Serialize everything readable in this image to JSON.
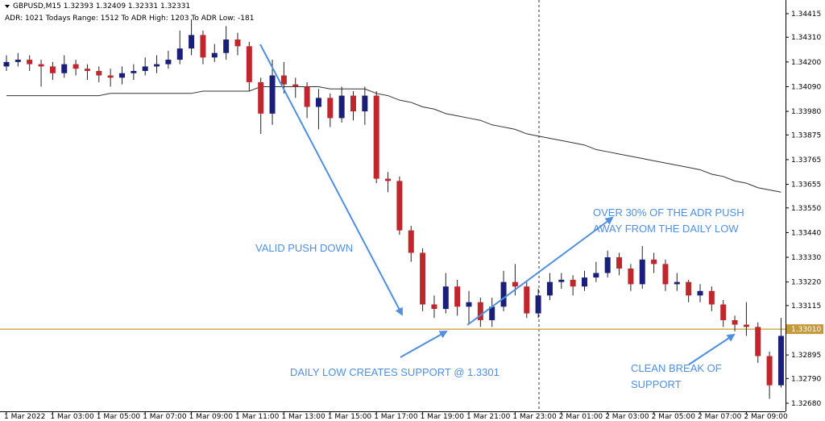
{
  "chart_data": {
    "type": "candlestick",
    "title": "GBPUSD,M15  1.32393 1.32409 1.32331 1.32331",
    "subtitle": "ADR: 1021  Todays Range: 1512  To ADR High: 1203  To ADR Low: -181",
    "categories": [
      "1 Mar 2022",
      null,
      null,
      null,
      "1 Mar 03:00",
      null,
      null,
      null,
      "1 Mar 05:00",
      null,
      null,
      null,
      "1 Mar 07:00",
      null,
      null,
      null,
      "1 Mar 09:00",
      null,
      null,
      null,
      "1 Mar 11:00",
      null,
      null,
      null,
      "1 Mar 13:00",
      null,
      null,
      null,
      "1 Mar 15:00",
      null,
      null,
      null,
      "1 Mar 17:00",
      null,
      null,
      null,
      "1 Mar 19:00",
      null,
      null,
      null,
      "1 Mar 21:00",
      null,
      null,
      null,
      "1 Mar 23:00",
      null,
      null,
      null,
      "2 Mar 01:00",
      null,
      null,
      null,
      "2 Mar 03:00",
      null,
      null,
      null,
      "2 Mar 05:00",
      null,
      null,
      null,
      "2 Mar 07:00",
      null,
      null,
      null,
      "2 Mar 09:00",
      null,
      null,
      null
    ],
    "open": [
      1.3418,
      1.342,
      1.3421,
      1.3419,
      1.3418,
      1.3415,
      1.3419,
      1.3417,
      1.3416,
      1.3414,
      1.3413,
      1.3415,
      1.3416,
      1.3418,
      1.3419,
      1.3421,
      1.3426,
      1.3432,
      1.3422,
      1.3424,
      1.343,
      1.3427,
      1.3411,
      1.3397,
      1.3414,
      1.341,
      1.3409,
      1.34,
      1.3404,
      1.3395,
      1.3405,
      1.3398,
      1.3405,
      1.3368,
      1.3367,
      1.3345,
      1.3335,
      1.3312,
      1.331,
      1.332,
      1.3311,
      1.3313,
      1.3305,
      1.3311,
      1.3322,
      1.332,
      1.3308,
      1.3316,
      1.3322,
      1.3323,
      1.332,
      1.3324,
      1.3326,
      1.3333,
      1.3328,
      1.3321,
      1.3332,
      1.333,
      1.3321,
      1.3322,
      1.3316,
      1.3318,
      1.3312,
      1.3305,
      1.3303,
      1.3302,
      1.3289,
      1.3276
    ],
    "high": [
      1.3423,
      1.3424,
      1.3423,
      1.3421,
      1.342,
      1.3423,
      1.3421,
      1.3419,
      1.3418,
      1.3417,
      1.3418,
      1.3419,
      1.3422,
      1.3423,
      1.3425,
      1.3434,
      1.3439,
      1.3434,
      1.3428,
      1.3436,
      1.3433,
      1.3429,
      1.3413,
      1.3421,
      1.342,
      1.3413,
      1.3411,
      1.3408,
      1.3406,
      1.3409,
      1.3407,
      1.3409,
      1.3407,
      1.3371,
      1.3369,
      1.3347,
      1.3337,
      1.3316,
      1.3326,
      1.3323,
      1.3318,
      1.3315,
      1.3315,
      1.3327,
      1.333,
      1.3322,
      1.3319,
      1.3326,
      1.3326,
      1.3325,
      1.3327,
      1.3331,
      1.3336,
      1.3335,
      1.333,
      1.3338,
      1.3335,
      1.3332,
      1.3326,
      1.3323,
      1.3321,
      1.332,
      1.3314,
      1.3307,
      1.3313,
      1.3304,
      1.3291,
      1.3306
    ],
    "low": [
      1.3416,
      1.3418,
      1.3416,
      1.3409,
      1.3412,
      1.3413,
      1.3414,
      1.3412,
      1.3411,
      1.3409,
      1.341,
      1.3412,
      1.3414,
      1.3415,
      1.3417,
      1.3419,
      1.3423,
      1.3419,
      1.342,
      1.3421,
      1.3423,
      1.3407,
      1.3388,
      1.3392,
      1.3406,
      1.3404,
      1.3395,
      1.339,
      1.3391,
      1.3393,
      1.3394,
      1.3392,
      1.3366,
      1.3362,
      1.3343,
      1.3331,
      1.3309,
      1.3306,
      1.3308,
      1.3307,
      1.3303,
      1.3302,
      1.3302,
      1.3309,
      1.3316,
      1.3306,
      1.3306,
      1.3314,
      1.3319,
      1.3316,
      1.3318,
      1.3322,
      1.3324,
      1.3325,
      1.3318,
      1.3319,
      1.3326,
      1.3318,
      1.3318,
      1.3313,
      1.3313,
      1.3309,
      1.3302,
      1.33,
      1.3298,
      1.3286,
      1.327,
      1.3275
    ],
    "close": [
      1.342,
      1.3421,
      1.3419,
      1.3418,
      1.3415,
      1.3419,
      1.3417,
      1.3416,
      1.3414,
      1.3413,
      1.3415,
      1.3416,
      1.3418,
      1.3419,
      1.3421,
      1.3426,
      1.3432,
      1.3422,
      1.3424,
      1.343,
      1.3427,
      1.3411,
      1.3397,
      1.3414,
      1.341,
      1.3409,
      1.34,
      1.3404,
      1.3395,
      1.3405,
      1.3398,
      1.3405,
      1.3368,
      1.3367,
      1.3345,
      1.3335,
      1.3312,
      1.331,
      1.332,
      1.3311,
      1.3313,
      1.3305,
      1.3311,
      1.3322,
      1.332,
      1.3308,
      1.3316,
      1.3322,
      1.3323,
      1.332,
      1.3324,
      1.3326,
      1.3333,
      1.3328,
      1.3321,
      1.3332,
      1.333,
      1.3321,
      1.3322,
      1.3316,
      1.3318,
      1.3312,
      1.3305,
      1.3303,
      1.3302,
      1.3289,
      1.3276,
      1.3298
    ],
    "up_color": "#1a1f7a",
    "down_color": "#c0272d",
    "moving_average": {
      "color": "#333333",
      "values": [
        1.3405,
        1.3405,
        1.3405,
        1.3405,
        1.3405,
        1.3405,
        1.3405,
        1.3405,
        1.3405,
        1.3406,
        1.3406,
        1.3406,
        1.3406,
        1.3406,
        1.3406,
        1.3406,
        1.3406,
        1.3407,
        1.3407,
        1.3407,
        1.3407,
        1.3407,
        1.3409,
        1.3409,
        1.3409,
        1.3409,
        1.3409,
        1.3409,
        1.3408,
        1.3408,
        1.3408,
        1.3408,
        1.3406,
        1.3405,
        1.3403,
        1.3402,
        1.34,
        1.3399,
        1.3397,
        1.3396,
        1.3395,
        1.3394,
        1.3392,
        1.3391,
        1.339,
        1.3388,
        1.3387,
        1.3386,
        1.3385,
        1.3384,
        1.3383,
        1.3381,
        1.338,
        1.3379,
        1.3378,
        1.3377,
        1.3376,
        1.3375,
        1.3374,
        1.3373,
        1.3372,
        1.337,
        1.3369,
        1.3367,
        1.3366,
        1.3364,
        1.3363,
        1.3362
      ]
    },
    "ylim": [
      1.32644,
      1.34476
    ],
    "yticks": [
      {
        "value": 1.34415,
        "label": "1.34415"
      },
      {
        "value": 1.3431,
        "label": "1.34310"
      },
      {
        "value": 1.342,
        "label": "1.34200"
      },
      {
        "value": 1.3409,
        "label": "1.34090"
      },
      {
        "value": 1.3398,
        "label": "1.33980"
      },
      {
        "value": 1.33875,
        "label": "1.33875"
      },
      {
        "value": 1.33765,
        "label": "1.33765"
      },
      {
        "value": 1.33655,
        "label": "1.33655"
      },
      {
        "value": 1.3355,
        "label": "1.33550"
      },
      {
        "value": 1.3344,
        "label": "1.33440"
      },
      {
        "value": 1.3333,
        "label": "1.33330"
      },
      {
        "value": 1.3322,
        "label": "1.33220"
      },
      {
        "value": 1.33115,
        "label": "1.33115"
      },
      {
        "value": 1.32895,
        "label": "1.32895"
      },
      {
        "value": 1.3279,
        "label": "1.32790"
      },
      {
        "value": 1.3268,
        "label": "1.32680"
      }
    ],
    "support": {
      "value": 1.3301,
      "label": "1.33010",
      "color": "#c49a3a"
    },
    "annotations": [
      "VALID PUSH DOWN",
      "OVER 30% OF THE ADR PUSH",
      "AWAY FROM THE DAILY LOW",
      "DAILY LOW CREATES SUPPORT @ 1.3301",
      "CLEAN BREAK OF",
      "SUPPORT"
    ]
  }
}
